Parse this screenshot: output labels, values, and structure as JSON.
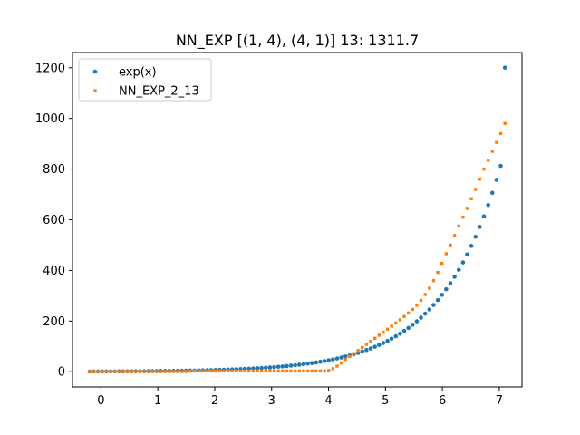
{
  "chart_data": {
    "type": "scatter",
    "title": "NN_EXP [(1, 4), (4, 1)] 13: 1311.7",
    "xlabel": "",
    "ylabel": "",
    "xlim": [
      -0.5,
      7.4
    ],
    "ylim": [
      -60,
      1260
    ],
    "x_ticks": [
      0,
      1,
      2,
      3,
      4,
      5,
      6,
      7
    ],
    "y_ticks": [
      0,
      200,
      400,
      600,
      800,
      1000,
      1200
    ],
    "grid": false,
    "legend_position": "top-left",
    "x_range": [
      -0.2,
      7.1
    ],
    "num_points": 100,
    "series": [
      {
        "name": "exp(x)",
        "color": "#1f77b4",
        "marker": "circle",
        "y": [
          0.82,
          0.88,
          0.95,
          1.02,
          1.09,
          1.17,
          1.26,
          1.35,
          1.45,
          1.55,
          1.67,
          1.79,
          1.92,
          2.06,
          2.21,
          2.37,
          2.54,
          2.73,
          2.93,
          3.14,
          3.37,
          3.62,
          3.88,
          4.16,
          4.47,
          4.79,
          5.14,
          5.52,
          5.92,
          6.35,
          6.81,
          7.31,
          7.84,
          8.41,
          9.02,
          9.68,
          10.38,
          11.14,
          11.95,
          12.82,
          13.75,
          14.76,
          15.83,
          16.98,
          18.22,
          19.55,
          20.97,
          22.5,
          24.14,
          25.9,
          27.78,
          29.81,
          31.98,
          34.31,
          36.81,
          39.49,
          42.37,
          45.46,
          48.77,
          52.32,
          56.13,
          60.22,
          64.61,
          69.32,
          74.37,
          79.79,
          85.6,
          91.84,
          98.53,
          105.71,
          113.41,
          121.68,
          130.54,
          140.06,
          150.26,
          161.21,
          172.96,
          185.56,
          199.08,
          213.59,
          229.15,
          245.85,
          263.77,
          282.99,
          303.61,
          325.73,
          349.47,
          374.93,
          402.26,
          431.57,
          463.02,
          496.76,
          532.96,
          571.8,
          613.46,
          658.17,
          706.13,
          757.58,
          812.79,
          1200.49
        ]
      },
      {
        "name": "NN_EXP_2_13",
        "color": "#ff7f0e",
        "marker": "square",
        "y": [
          0.5,
          0.5,
          0.5,
          0.5,
          0.5,
          0.5,
          0.5,
          0.5,
          0.5,
          0.5,
          0.5,
          0.5,
          0.5,
          0.5,
          0.5,
          0.5,
          0.5,
          0.5,
          0.5,
          0.5,
          0.5,
          0.5,
          0.5,
          0.5,
          3.0,
          3.0,
          3.0,
          3.0,
          3.0,
          3.0,
          3.0,
          3.0,
          3.0,
          3.0,
          3.0,
          3.0,
          3.0,
          3.0,
          3.0,
          3.0,
          3.0,
          3.0,
          3.0,
          3.0,
          3.0,
          3.0,
          3.0,
          3.0,
          3.0,
          3.0,
          3.0,
          3.0,
          3.0,
          3.0,
          3.0,
          3.0,
          3.0,
          5.0,
          12.0,
          22.0,
          35.0,
          48.0,
          60.0,
          72.0,
          84.0,
          96.0,
          108.0,
          120.0,
          132.0,
          144.0,
          156.0,
          168.0,
          180.0,
          192.0,
          205.0,
          218.0,
          232.0,
          246.0,
          262.0,
          282.0,
          305.0,
          330.0,
          360.0,
          392.0,
          428.0,
          466.0,
          500.0,
          538.0,
          575.0,
          610.0,
          645.0,
          683.0,
          720.0,
          760.0,
          800.0,
          835.0,
          870.0,
          905.0,
          940.0,
          980.0
        ]
      }
    ]
  }
}
